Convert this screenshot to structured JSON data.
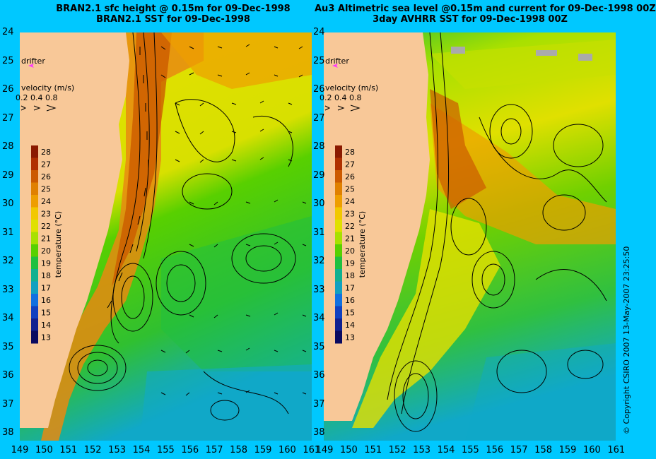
{
  "titles": {
    "left_line1": "BRAN2.1 sfc height @ 0.15m for 09-Dec-1998",
    "left_line2": "BRAN2.1 SST for 09-Dec-1998",
    "right_line1": "Au3 Altimetric sea level  @0.15m and current for 09-Dec-1998 00Z",
    "right_line2": "3day AVHRR SST for 09-Dec-1998 00Z"
  },
  "legend": {
    "drifter_label": "drifter",
    "velocity_label": "velocity (m/s)",
    "velocity_values": "0.2 0.4 0.8",
    "colorbar_title": "temperature (°C)",
    "colorbar_ticks": [
      "28",
      "27",
      "26",
      "25",
      "24",
      "23",
      "22",
      "21",
      "20",
      "19",
      "18",
      "17",
      "16",
      "15",
      "14",
      "13"
    ],
    "colorbar_colors": [
      "#8b1a00",
      "#b03000",
      "#cc5a00",
      "#e08000",
      "#ee9e00",
      "#f2c800",
      "#e0e000",
      "#a8e000",
      "#58d000",
      "#20c040",
      "#10b090",
      "#10a0c0",
      "#1070e0",
      "#1040c0",
      "#102090",
      "#0a0a60"
    ],
    "drifter_color": "#ff33ff"
  },
  "axes": {
    "y_ticks": [
      "24",
      "25",
      "26",
      "27",
      "28",
      "29",
      "30",
      "31",
      "32",
      "33",
      "34",
      "35",
      "36",
      "37",
      "38"
    ],
    "x_ticks": [
      "149",
      "150",
      "151",
      "152",
      "153",
      "154",
      "155",
      "156",
      "157",
      "158",
      "159",
      "160",
      "161"
    ]
  },
  "copyright": "© Copyright CSIRO 2007   13-May-2007 23:25:50",
  "colors": {
    "background": "#00c8ff",
    "land": "#f8c898",
    "ocean_warm": "#e88a10",
    "ocean_mid": "#e6e000",
    "ocean_cool": "#28c828",
    "ocean_cold": "#10a8c8"
  }
}
